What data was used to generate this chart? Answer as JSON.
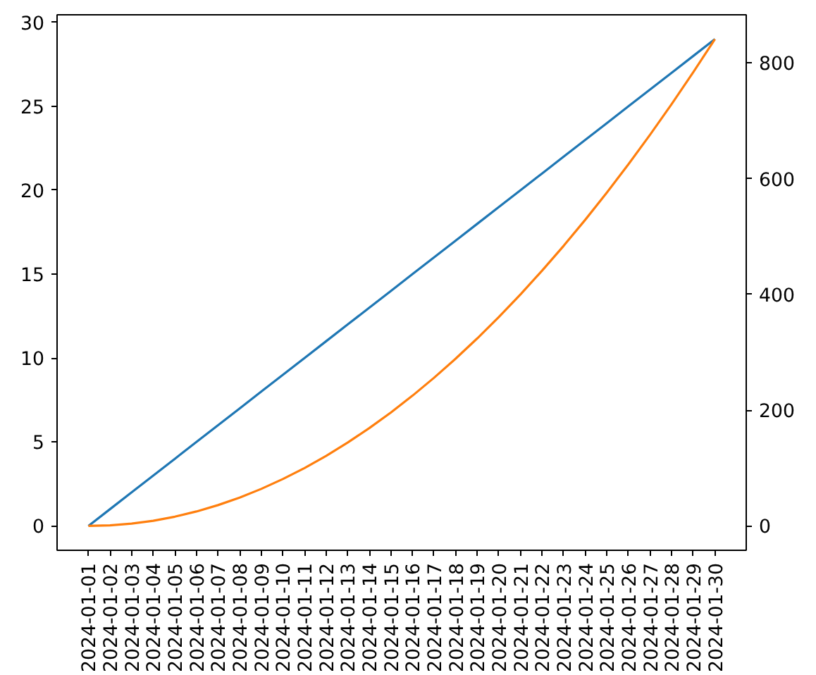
{
  "chart_data": {
    "type": "line",
    "x": [
      "2024-01-01",
      "2024-01-02",
      "2024-01-03",
      "2024-01-04",
      "2024-01-05",
      "2024-01-06",
      "2024-01-07",
      "2024-01-08",
      "2024-01-09",
      "2024-01-10",
      "2024-01-11",
      "2024-01-12",
      "2024-01-13",
      "2024-01-14",
      "2024-01-15",
      "2024-01-16",
      "2024-01-17",
      "2024-01-18",
      "2024-01-19",
      "2024-01-20",
      "2024-01-21",
      "2024-01-22",
      "2024-01-23",
      "2024-01-24",
      "2024-01-25",
      "2024-01-26",
      "2024-01-27",
      "2024-01-28",
      "2024-01-29",
      "2024-01-30"
    ],
    "series": [
      {
        "color": "#1f77b4",
        "values": [
          0,
          1,
          2,
          3,
          4,
          5,
          6,
          7,
          8,
          9,
          10,
          11,
          12,
          13,
          14,
          15,
          16,
          17,
          18,
          19,
          20,
          21,
          22,
          23,
          24,
          25,
          26,
          27,
          28,
          29
        ]
      },
      {
        "color": "#ff7f0e",
        "axis": "y2",
        "values": [
          0,
          1,
          4,
          9,
          16,
          25,
          36,
          49,
          64,
          81,
          100,
          121,
          144,
          169,
          196,
          225,
          256,
          289,
          324,
          361,
          400,
          441,
          484,
          529,
          576,
          625,
          676,
          729,
          784,
          841
        ]
      }
    ],
    "xlim": [
      "2023-12-30T13:12",
      "2024-01-31T10:48"
    ],
    "xticks": [
      "2024-01-01",
      "2024-01-02",
      "2024-01-03",
      "2024-01-04",
      "2024-01-05",
      "2024-01-06",
      "2024-01-07",
      "2024-01-08",
      "2024-01-09",
      "2024-01-10",
      "2024-01-11",
      "2024-01-12",
      "2024-01-13",
      "2024-01-14",
      "2024-01-15",
      "2024-01-16",
      "2024-01-17",
      "2024-01-18",
      "2024-01-19",
      "2024-01-20",
      "2024-01-21",
      "2024-01-22",
      "2024-01-23",
      "2024-01-24",
      "2024-01-25",
      "2024-01-26",
      "2024-01-27",
      "2024-01-28",
      "2024-01-29",
      "2024-01-30"
    ],
    "ylim": [
      -1.45,
      30.45
    ],
    "yticks": [
      0,
      5,
      10,
      15,
      20,
      25,
      30
    ],
    "y2lim": [
      -42.05,
      883.05
    ],
    "y2ticks": [
      0,
      200,
      400,
      600,
      800
    ],
    "grid": false,
    "marker": "none",
    "line_style": "solid"
  }
}
